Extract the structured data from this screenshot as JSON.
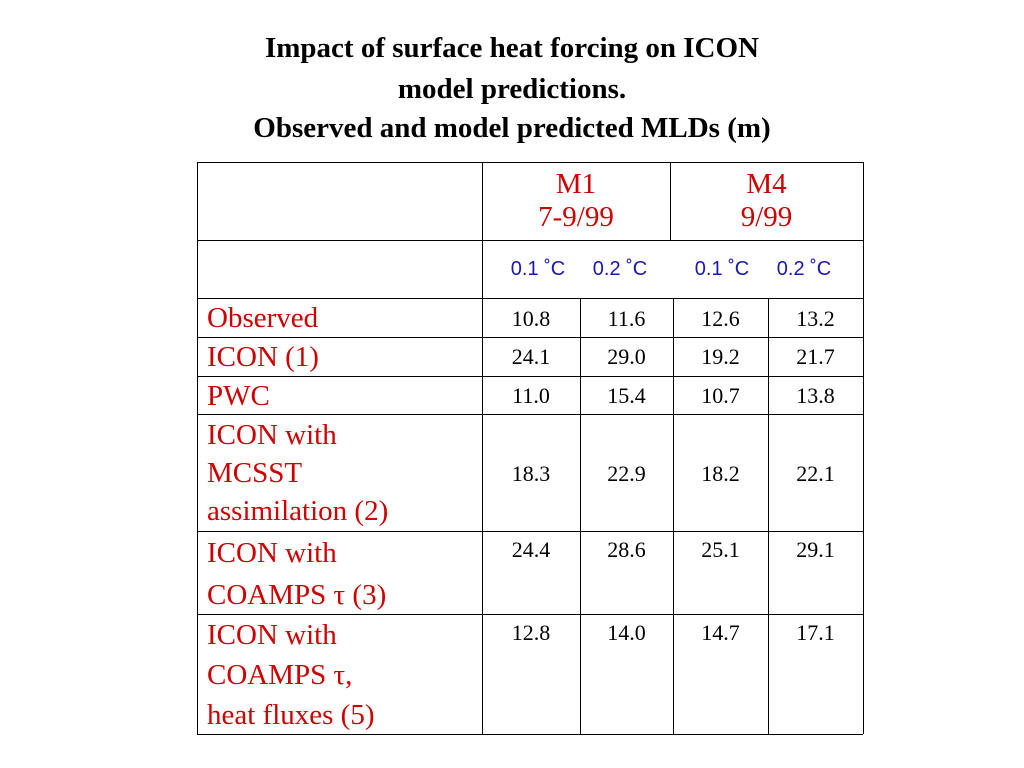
{
  "title": {
    "line1": "Impact of surface heat forcing on ICON",
    "line2": "model predictions.",
    "line3": "Observed and model predicted MLDs (m)"
  },
  "table": {
    "groups": [
      {
        "name": "M1",
        "dates": "7-9/99"
      },
      {
        "name": "M4",
        "dates": "9/99"
      }
    ],
    "subheaders": [
      "0.1 ˚C",
      "0.2 ˚C",
      "0.1 ˚C",
      "0.2 ˚C"
    ],
    "rows": [
      {
        "label_lines": [
          "Observed"
        ],
        "values": [
          "10.8",
          "11.6",
          "12.6",
          "13.2"
        ]
      },
      {
        "label_lines": [
          "ICON (1)"
        ],
        "values": [
          "24.1",
          "29.0",
          "19.2",
          "21.7"
        ]
      },
      {
        "label_lines": [
          "PWC"
        ],
        "values": [
          "11.0",
          "15.4",
          "10.7",
          "13.8"
        ]
      },
      {
        "label_lines": [
          "ICON with",
          "MCSST",
          "assimilation (2)"
        ],
        "values": [
          "18.3",
          "22.9",
          "18.2",
          "22.1"
        ]
      },
      {
        "label_lines": [
          "ICON with",
          "COAMPS τ (3)"
        ],
        "values": [
          "24.4",
          "28.6",
          "25.1",
          "29.1"
        ]
      },
      {
        "label_lines": [
          "ICON with",
          "COAMPS τ,",
          "heat fluxes (5)"
        ],
        "values": [
          "12.8",
          "14.0",
          "14.7",
          "17.1"
        ]
      }
    ]
  }
}
